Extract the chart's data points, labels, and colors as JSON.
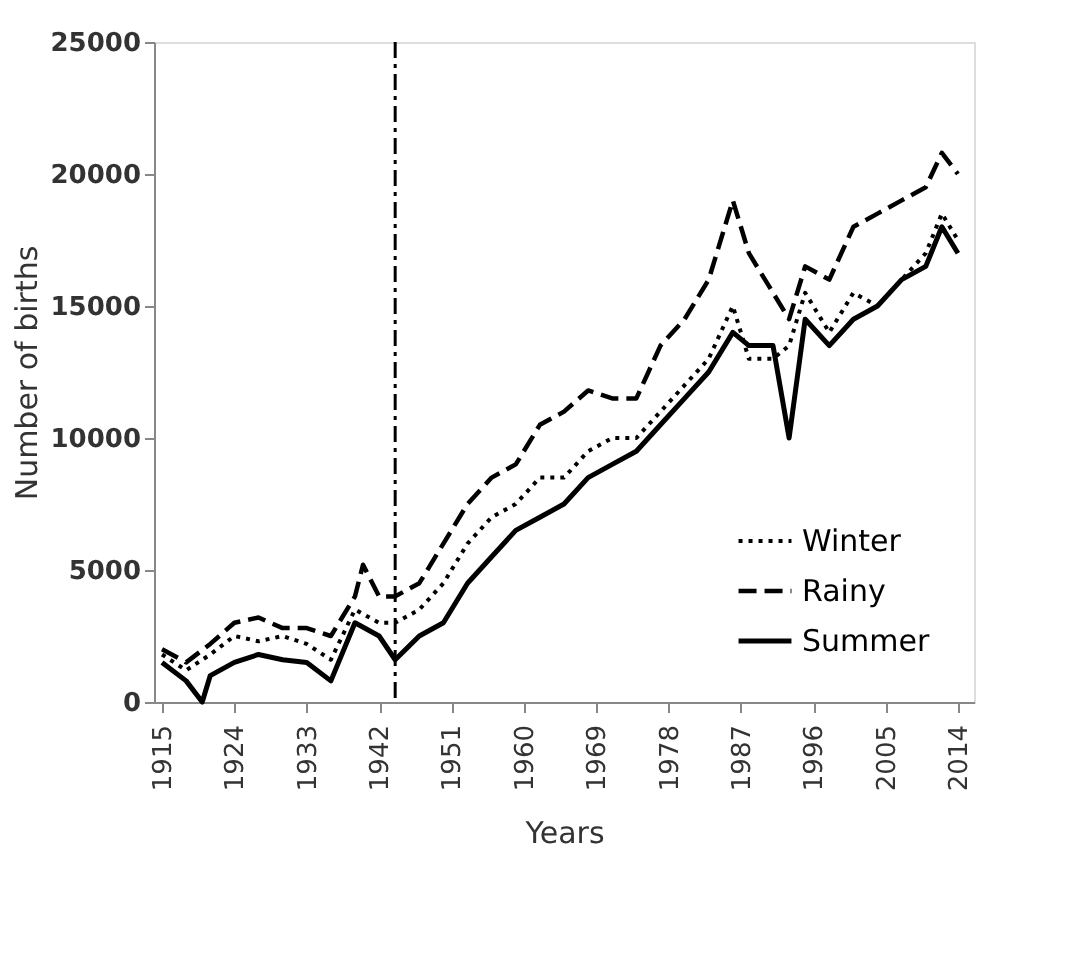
{
  "chart_data": {
    "type": "line",
    "xlabel": "Years",
    "ylabel": "Number of births",
    "xlim": [
      1914,
      2016
    ],
    "ylim": [
      0,
      25000
    ],
    "xticks": [
      1915,
      1924,
      1933,
      1942,
      1951,
      1960,
      1969,
      1978,
      1987,
      1996,
      2005,
      2014
    ],
    "yticks": [
      0,
      5000,
      10000,
      15000,
      20000,
      25000
    ],
    "grid": false,
    "legend": "bottom right",
    "marker": "none",
    "ref_lines": [
      {
        "axis": "x",
        "value": 1944,
        "line_style": "dashdot",
        "color": "#000000"
      }
    ],
    "series": [
      {
        "name": "Winter",
        "color": "#000000",
        "line_style": "dotted",
        "x": [
          1915,
          1918,
          1921,
          1924,
          1927,
          1930,
          1933,
          1936,
          1939,
          1942,
          1944,
          1947,
          1950,
          1953,
          1956,
          1959,
          1962,
          1965,
          1968,
          1971,
          1974,
          1977,
          1980,
          1983,
          1986,
          1988,
          1991,
          1993,
          1995,
          1998,
          2001,
          2004,
          2007,
          2010,
          2012,
          2014
        ],
        "values": [
          1800,
          1200,
          1800,
          2500,
          2300,
          2500,
          2200,
          1600,
          3500,
          3000,
          3000,
          3500,
          4500,
          6000,
          7000,
          7500,
          8500,
          8500,
          9500,
          10000,
          10000,
          11000,
          12000,
          13000,
          15000,
          13000,
          13000,
          13500,
          15500,
          14000,
          15500,
          15000,
          16000,
          17000,
          18500,
          17500
        ]
      },
      {
        "name": "Rainy",
        "color": "#000000",
        "line_style": "dashed",
        "x": [
          1915,
          1918,
          1921,
          1924,
          1927,
          1930,
          1933,
          1936,
          1939,
          1940,
          1942,
          1944,
          1947,
          1950,
          1953,
          1956,
          1959,
          1962,
          1965,
          1968,
          1971,
          1974,
          1977,
          1980,
          1983,
          1986,
          1988,
          1991,
          1993,
          1995,
          1998,
          2001,
          2004,
          2007,
          2010,
          2012,
          2014
        ],
        "values": [
          2000,
          1500,
          2200,
          3000,
          3200,
          2800,
          2800,
          2500,
          4000,
          5200,
          4000,
          4000,
          4500,
          6000,
          7500,
          8500,
          9000,
          10500,
          11000,
          11800,
          11500,
          11500,
          13500,
          14500,
          16000,
          19000,
          17000,
          15500,
          14500,
          16500,
          16000,
          18000,
          18500,
          19000,
          19500,
          20800,
          20000
        ]
      },
      {
        "name": "Summer",
        "color": "#000000",
        "line_style": "solid",
        "x": [
          1915,
          1918,
          1920,
          1921,
          1924,
          1927,
          1930,
          1933,
          1936,
          1939,
          1942,
          1944,
          1947,
          1950,
          1953,
          1956,
          1959,
          1962,
          1965,
          1968,
          1971,
          1974,
          1977,
          1980,
          1983,
          1986,
          1988,
          1991,
          1993,
          1995,
          1998,
          2001,
          2004,
          2007,
          2010,
          2012,
          2014
        ],
        "values": [
          1500,
          800,
          0,
          1000,
          1500,
          1800,
          1600,
          1500,
          800,
          3000,
          2500,
          1600,
          2500,
          3000,
          4500,
          5500,
          6500,
          7000,
          7500,
          8500,
          9000,
          9500,
          10500,
          11500,
          12500,
          14000,
          13500,
          13500,
          10000,
          14500,
          13500,
          14500,
          15000,
          16000,
          16500,
          18000,
          17000
        ]
      }
    ]
  }
}
